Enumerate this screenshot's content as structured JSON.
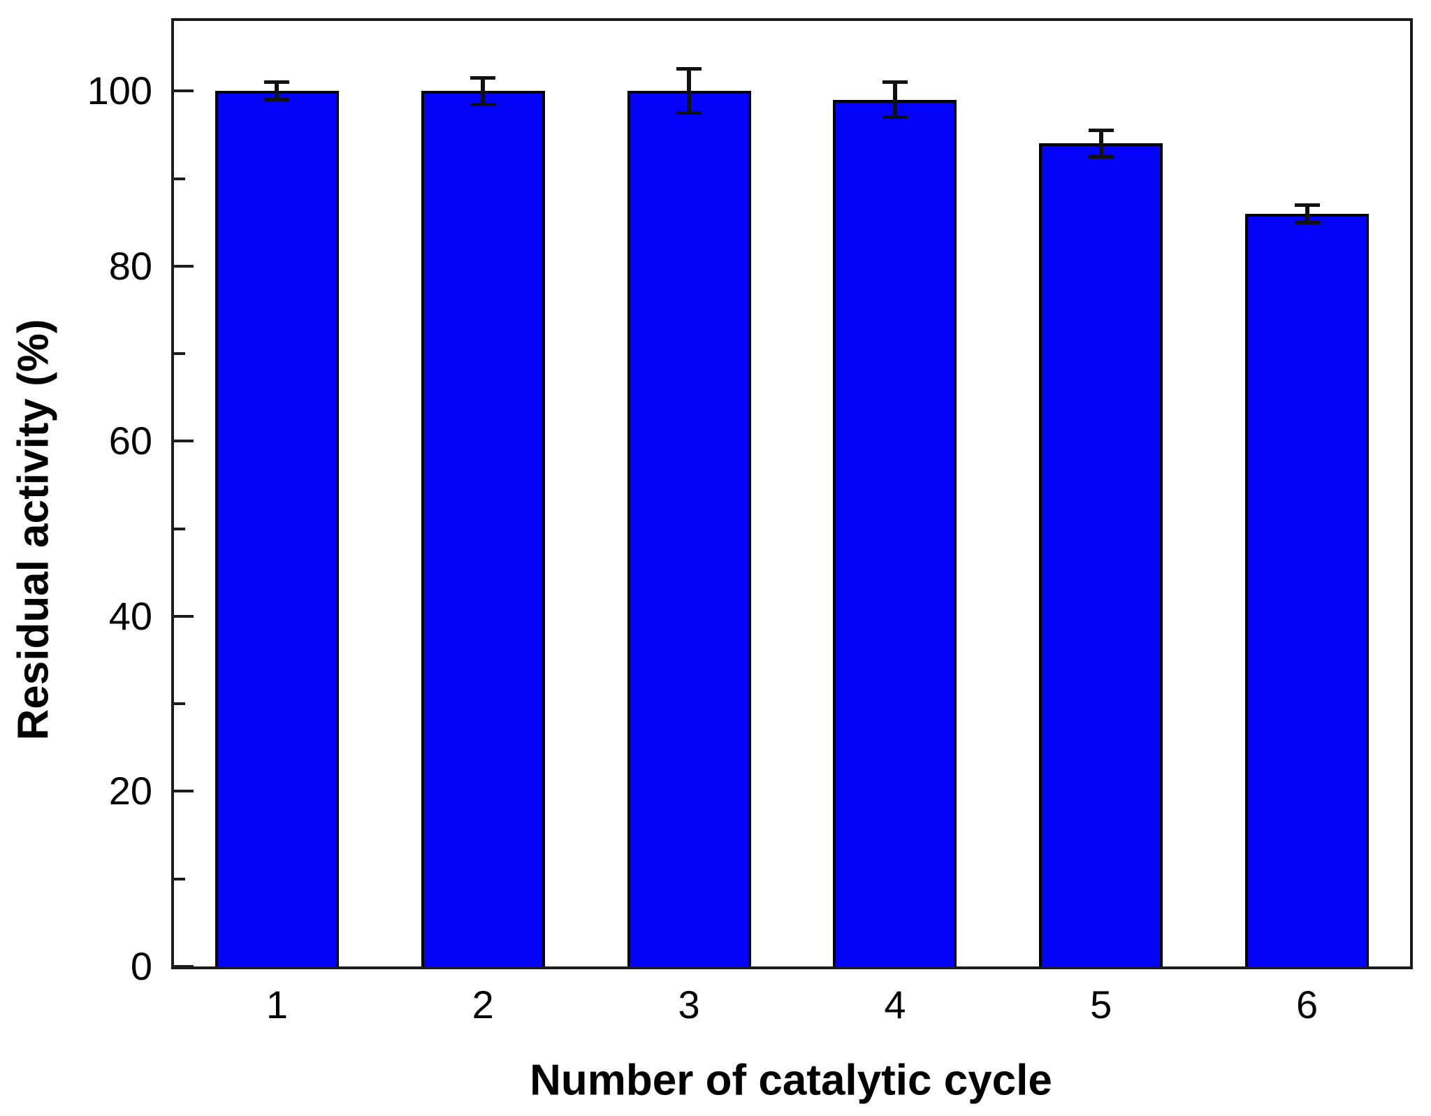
{
  "chart_data": {
    "type": "bar",
    "title": "",
    "xlabel": "Number of catalytic cycle",
    "ylabel": "Residual activity (%)",
    "categories": [
      "1",
      "2",
      "3",
      "4",
      "5",
      "6"
    ],
    "values": [
      100,
      100,
      100,
      99,
      94,
      86
    ],
    "error_bars": [
      1,
      1.5,
      2.5,
      2,
      1.5,
      1
    ],
    "ylim": [
      0,
      108
    ],
    "yticks": [
      0,
      20,
      40,
      60,
      80,
      100
    ],
    "yticks_minor": [
      10,
      30,
      50,
      70,
      90
    ],
    "grid": false,
    "legend": null,
    "colors": {
      "bar_fill": "#0203f8",
      "bar_edge": "#000000",
      "error_bar": "#111111",
      "axis": "#1c1c1c",
      "text": "#000000",
      "background": "#ffffff"
    }
  }
}
